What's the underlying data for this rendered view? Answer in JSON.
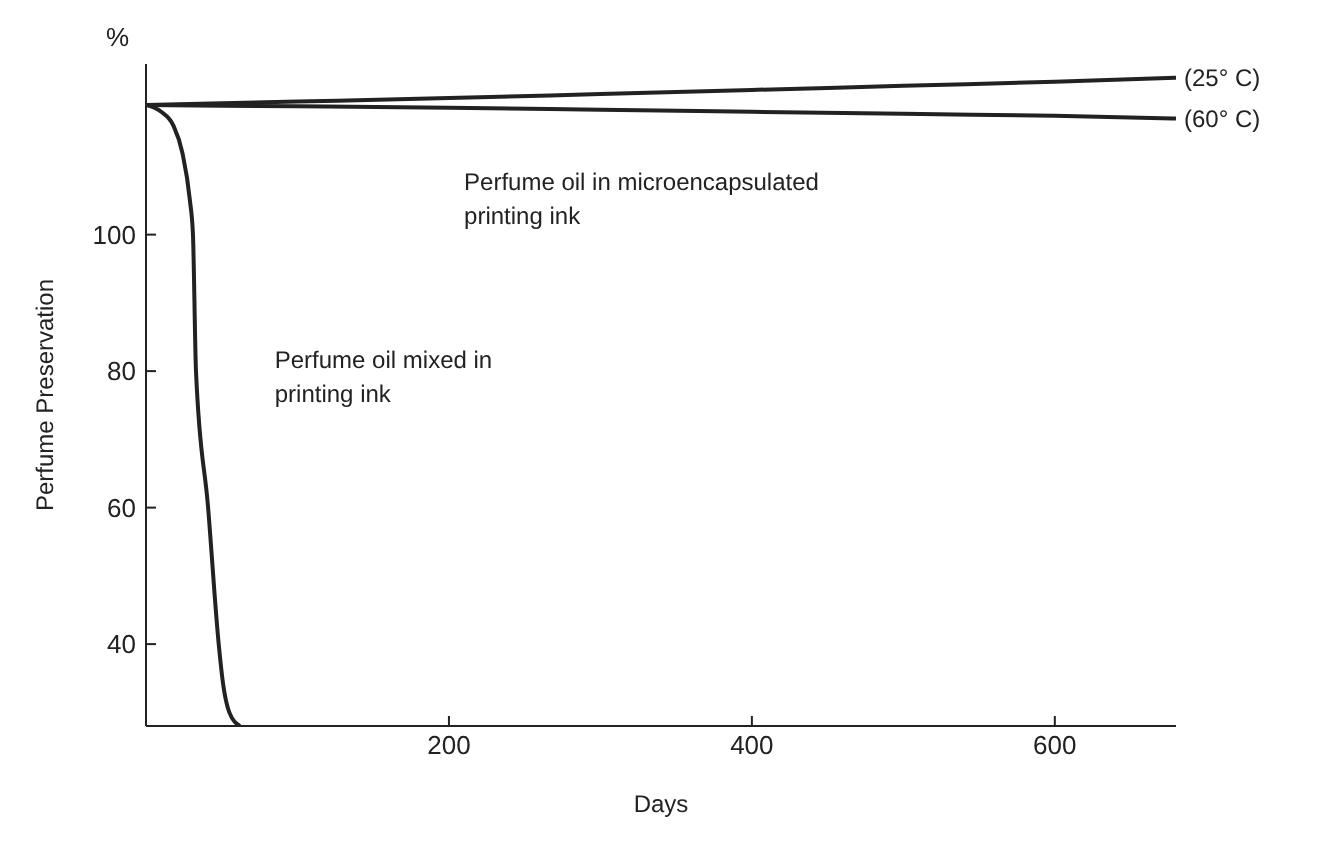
{
  "chart_data": {
    "type": "line",
    "xlabel": "Days",
    "ylabel": "Perfume Preservation",
    "xlim": [
      0,
      680
    ],
    "ylim": [
      28,
      125
    ],
    "xticks": [
      200,
      400,
      600
    ],
    "yticks": [
      40,
      60,
      80,
      100
    ],
    "marker": "none",
    "line_style": "solid",
    "series": [
      {
        "name": "(25° C)",
        "color": "#222222",
        "x": [
          0,
          100,
          200,
          300,
          400,
          500,
          600,
          680
        ],
        "values": [
          119,
          119.5,
          120,
          120.6,
          121.2,
          121.8,
          122.4,
          123
        ]
      },
      {
        "name": "(60° C)",
        "color": "#222222",
        "x": [
          0,
          100,
          200,
          300,
          400,
          500,
          600,
          680
        ],
        "values": [
          119,
          118.8,
          118.6,
          118.3,
          118,
          117.7,
          117.4,
          117
        ]
      },
      {
        "color": "#222222",
        "x": [
          0,
          10,
          18,
          24,
          29,
          31,
          33,
          41,
          48,
          51,
          55,
          62
        ],
        "values": [
          119,
          118,
          116,
          112,
          105,
          100,
          80,
          60,
          40,
          34,
          30,
          28
        ]
      }
    ],
    "annotations": [
      "%",
      "Perfume oil in microencapsulated printing ink",
      "Perfume oil mixed in printing ink"
    ]
  }
}
